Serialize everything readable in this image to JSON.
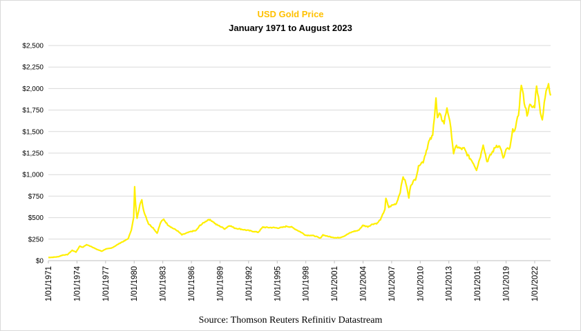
{
  "chart_data": {
    "type": "line",
    "title": "USD Gold Price",
    "subtitle": "January 1971 to August 2023",
    "source": "Source: Thomson Reuters Refinitiv Datastream",
    "ylim": [
      0,
      2500
    ],
    "xlim": [
      1971.0,
      2023.67
    ],
    "grid": true,
    "y_ticks": [
      {
        "value": 0,
        "label": "$0"
      },
      {
        "value": 250,
        "label": "$250"
      },
      {
        "value": 500,
        "label": "$500"
      },
      {
        "value": 750,
        "label": "$750"
      },
      {
        "value": 1000,
        "label": "$1,000"
      },
      {
        "value": 1250,
        "label": "$1,250"
      },
      {
        "value": 1500,
        "label": "$1,500"
      },
      {
        "value": 1750,
        "label": "$1,750"
      },
      {
        "value": 2000,
        "label": "$2,000"
      },
      {
        "value": 2250,
        "label": "$2,250"
      },
      {
        "value": 2500,
        "label": "$2,500"
      }
    ],
    "x_ticks": [
      {
        "value": 1971,
        "label": "1/01/1971"
      },
      {
        "value": 1974,
        "label": "1/01/1974"
      },
      {
        "value": 1977,
        "label": "1/01/1977"
      },
      {
        "value": 1980,
        "label": "1/01/1980"
      },
      {
        "value": 1983,
        "label": "1/01/1983"
      },
      {
        "value": 1986,
        "label": "1/01/1986"
      },
      {
        "value": 1989,
        "label": "1/01/1989"
      },
      {
        "value": 1992,
        "label": "1/01/1992"
      },
      {
        "value": 1995,
        "label": "1/01/1995"
      },
      {
        "value": 1998,
        "label": "1/01/1998"
      },
      {
        "value": 2001,
        "label": "1/01/2001"
      },
      {
        "value": 2004,
        "label": "1/01/2004"
      },
      {
        "value": 2007,
        "label": "1/01/2007"
      },
      {
        "value": 2010,
        "label": "1/01/2010"
      },
      {
        "value": 2013,
        "label": "1/01/2013"
      },
      {
        "value": 2016,
        "label": "1/01/2016"
      },
      {
        "value": 2019,
        "label": "1/01/2019"
      },
      {
        "value": 2022,
        "label": "1/01/2022"
      }
    ],
    "series": [
      {
        "color": "#ffef00",
        "points": [
          [
            1971.0,
            37
          ],
          [
            1971.5,
            40
          ],
          [
            1972.0,
            45
          ],
          [
            1972.5,
            65
          ],
          [
            1973.0,
            70
          ],
          [
            1973.5,
            120
          ],
          [
            1973.9,
            100
          ],
          [
            1974.3,
            170
          ],
          [
            1974.6,
            155
          ],
          [
            1975.0,
            185
          ],
          [
            1975.5,
            165
          ],
          [
            1976.0,
            135
          ],
          [
            1976.6,
            110
          ],
          [
            1977.0,
            135
          ],
          [
            1977.6,
            145
          ],
          [
            1978.0,
            170
          ],
          [
            1978.6,
            210
          ],
          [
            1979.0,
            230
          ],
          [
            1979.4,
            260
          ],
          [
            1979.7,
            360
          ],
          [
            1979.95,
            500
          ],
          [
            1980.05,
            850
          ],
          [
            1980.15,
            650
          ],
          [
            1980.3,
            500
          ],
          [
            1980.6,
            650
          ],
          [
            1980.8,
            700
          ],
          [
            1981.0,
            580
          ],
          [
            1981.5,
            430
          ],
          [
            1982.0,
            380
          ],
          [
            1982.4,
            320
          ],
          [
            1982.8,
            450
          ],
          [
            1983.1,
            480
          ],
          [
            1983.5,
            420
          ],
          [
            1984.0,
            380
          ],
          [
            1984.5,
            350
          ],
          [
            1985.0,
            300
          ],
          [
            1985.5,
            320
          ],
          [
            1986.0,
            340
          ],
          [
            1986.5,
            350
          ],
          [
            1986.9,
            410
          ],
          [
            1987.3,
            440
          ],
          [
            1987.8,
            480
          ],
          [
            1988.2,
            460
          ],
          [
            1988.6,
            420
          ],
          [
            1989.0,
            400
          ],
          [
            1989.5,
            370
          ],
          [
            1990.0,
            410
          ],
          [
            1990.5,
            380
          ],
          [
            1991.0,
            370
          ],
          [
            1991.5,
            360
          ],
          [
            1992.0,
            350
          ],
          [
            1992.5,
            340
          ],
          [
            1993.0,
            330
          ],
          [
            1993.5,
            390
          ],
          [
            1994.0,
            385
          ],
          [
            1994.5,
            385
          ],
          [
            1995.0,
            380
          ],
          [
            1995.5,
            385
          ],
          [
            1996.0,
            400
          ],
          [
            1996.5,
            390
          ],
          [
            1997.0,
            360
          ],
          [
            1997.5,
            330
          ],
          [
            1998.0,
            295
          ],
          [
            1998.5,
            295
          ],
          [
            1999.0,
            285
          ],
          [
            1999.5,
            260
          ],
          [
            1999.8,
            300
          ],
          [
            2000.2,
            285
          ],
          [
            2000.7,
            275
          ],
          [
            2001.2,
            265
          ],
          [
            2001.6,
            270
          ],
          [
            2002.0,
            285
          ],
          [
            2002.5,
            315
          ],
          [
            2003.0,
            340
          ],
          [
            2003.5,
            350
          ],
          [
            2004.0,
            410
          ],
          [
            2004.5,
            395
          ],
          [
            2005.0,
            425
          ],
          [
            2005.5,
            435
          ],
          [
            2005.9,
            490
          ],
          [
            2006.3,
            600
          ],
          [
            2006.4,
            720
          ],
          [
            2006.7,
            620
          ],
          [
            2007.0,
            640
          ],
          [
            2007.5,
            665
          ],
          [
            2007.9,
            800
          ],
          [
            2008.2,
            980
          ],
          [
            2008.5,
            900
          ],
          [
            2008.8,
            730
          ],
          [
            2009.0,
            880
          ],
          [
            2009.5,
            950
          ],
          [
            2009.9,
            1120
          ],
          [
            2010.3,
            1150
          ],
          [
            2010.9,
            1380
          ],
          [
            2011.3,
            1450
          ],
          [
            2011.65,
            1900
          ],
          [
            2011.8,
            1650
          ],
          [
            2012.0,
            1700
          ],
          [
            2012.5,
            1600
          ],
          [
            2012.8,
            1780
          ],
          [
            2013.0,
            1680
          ],
          [
            2013.3,
            1450
          ],
          [
            2013.5,
            1250
          ],
          [
            2013.8,
            1330
          ],
          [
            2014.2,
            1300
          ],
          [
            2014.6,
            1300
          ],
          [
            2015.0,
            1220
          ],
          [
            2015.5,
            1150
          ],
          [
            2015.9,
            1060
          ],
          [
            2016.4,
            1250
          ],
          [
            2016.6,
            1360
          ],
          [
            2017.0,
            1150
          ],
          [
            2017.5,
            1250
          ],
          [
            2018.0,
            1340
          ],
          [
            2018.4,
            1320
          ],
          [
            2018.7,
            1180
          ],
          [
            2019.0,
            1290
          ],
          [
            2019.4,
            1300
          ],
          [
            2019.7,
            1510
          ],
          [
            2020.0,
            1540
          ],
          [
            2020.3,
            1700
          ],
          [
            2020.6,
            2050
          ],
          [
            2020.9,
            1850
          ],
          [
            2021.2,
            1700
          ],
          [
            2021.5,
            1800
          ],
          [
            2021.8,
            1780
          ],
          [
            2022.0,
            1800
          ],
          [
            2022.2,
            2050
          ],
          [
            2022.5,
            1800
          ],
          [
            2022.8,
            1630
          ],
          [
            2023.0,
            1850
          ],
          [
            2023.3,
            2000
          ],
          [
            2023.45,
            2040
          ],
          [
            2023.67,
            1920
          ]
        ]
      }
    ]
  },
  "colors": {
    "title": "#ffc000",
    "line": "#ffef00",
    "grid": "#d9d9d9",
    "axis": "#bfbfbf"
  }
}
